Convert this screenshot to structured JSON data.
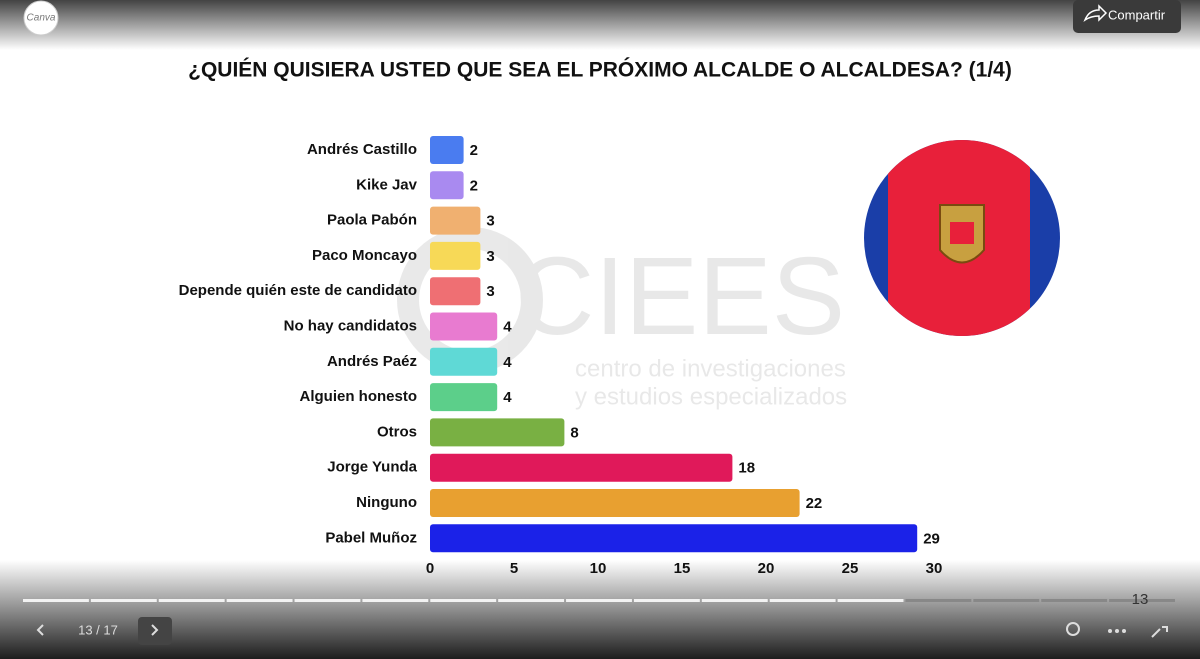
{
  "ui": {
    "logo": "Canva",
    "share": "Compartir",
    "page": "13 / 17",
    "slide_number": "13"
  },
  "watermark": {
    "brand": "CIEES",
    "line1": "centro de investigaciones",
    "line2": "y estudios especializados"
  },
  "chart_data": {
    "type": "bar",
    "orientation": "horizontal",
    "title": "¿QUIÉN QUISIERA USTED QUE SEA EL PRÓXIMO ALCALDE O ALCALDESA? (1/4)",
    "categories": [
      "Andrés Castillo",
      "Kike Jav",
      "Paola Pabón",
      "Paco Moncayo",
      "Depende quién este de candidato",
      "No hay candidatos",
      "Andrés Paéz",
      "Alguien honesto",
      "Otros",
      "Jorge Yunda",
      "Ninguno",
      "Pabel Muñoz"
    ],
    "values": [
      2,
      2,
      3,
      3,
      3,
      4,
      4,
      4,
      8,
      18,
      22,
      29
    ],
    "colors": [
      "#4a7cf0",
      "#a98af0",
      "#f0b070",
      "#f7d957",
      "#ef6f73",
      "#e87bd0",
      "#5fd9d6",
      "#5ccf8a",
      "#79b043",
      "#e0195a",
      "#e8a030",
      "#1b22e8"
    ],
    "xlim": [
      0,
      30
    ],
    "xticks": [
      0,
      5,
      10,
      15,
      20,
      25,
      30
    ],
    "grid": false
  }
}
